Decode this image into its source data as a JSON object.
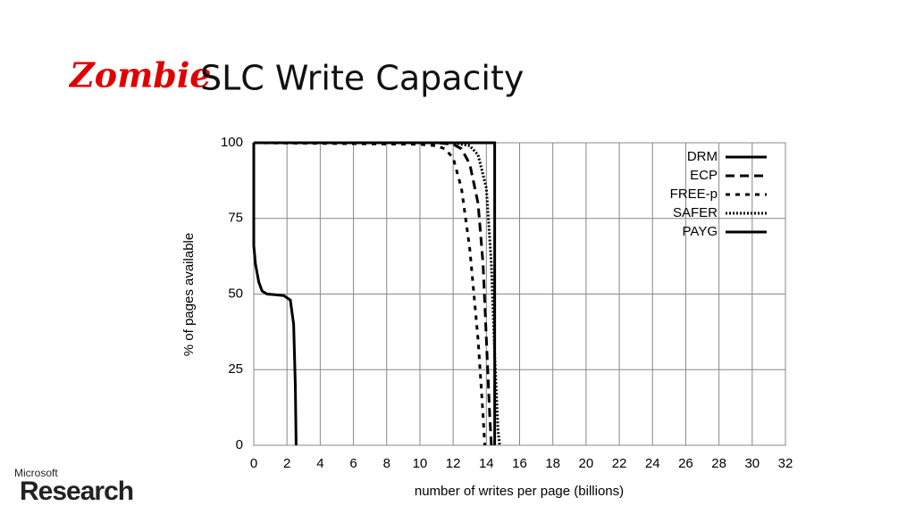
{
  "slide": {
    "title_accent": "Zombie",
    "title": "SLC Write Capacity",
    "logo_top": "Microsoft",
    "logo_bottom": "Research"
  },
  "chart_data": {
    "type": "line",
    "x_label": "number of writes per page (billions)",
    "y_label": "% of pages available",
    "xlim": [
      0,
      32
    ],
    "xticks": [
      0,
      2,
      4,
      6,
      8,
      10,
      12,
      14,
      16,
      18,
      20,
      22,
      24,
      26,
      28,
      30,
      32
    ],
    "ylim": [
      0,
      100
    ],
    "yticks": [
      0,
      25,
      50,
      75,
      100
    ],
    "grid": true,
    "legend": "top-right",
    "series": [
      {
        "name": "DRM",
        "color": "#000000",
        "style": "solid",
        "x": [
          0,
          0,
          0.1,
          0.3,
          0.5,
          0.8,
          1.2,
          1.8,
          2.2,
          2.4,
          2.5,
          2.55
        ],
        "values": [
          100,
          66,
          60,
          54,
          51,
          50,
          49.8,
          49.5,
          48,
          40,
          20,
          0
        ]
      },
      {
        "name": "ECP",
        "color": "#000000",
        "style": "dashed",
        "x": [
          0,
          11,
          12,
          12.5,
          13,
          13.5,
          13.8,
          14,
          14.2,
          14.3
        ],
        "values": [
          100,
          100,
          99.5,
          98,
          93,
          80,
          60,
          35,
          10,
          0
        ]
      },
      {
        "name": "FREE-p",
        "color": "#000000",
        "style": "short-dashed",
        "x": [
          0,
          10,
          11,
          11.5,
          12,
          12.5,
          13,
          13.5,
          13.8,
          13.9
        ],
        "values": [
          100,
          99.5,
          99,
          98,
          95,
          85,
          65,
          35,
          10,
          0
        ]
      },
      {
        "name": "SAFER",
        "color": "#000000",
        "style": "dotted",
        "x": [
          0,
          12,
          13,
          13.5,
          14,
          14.3,
          14.5,
          14.7,
          14.8
        ],
        "values": [
          100,
          100,
          99,
          96,
          85,
          60,
          30,
          5,
          0
        ]
      },
      {
        "name": "PAYG",
        "color": "#000000",
        "style": "solid",
        "x": [
          0,
          14.5,
          14.5
        ],
        "values": [
          100,
          100,
          0
        ]
      }
    ]
  }
}
